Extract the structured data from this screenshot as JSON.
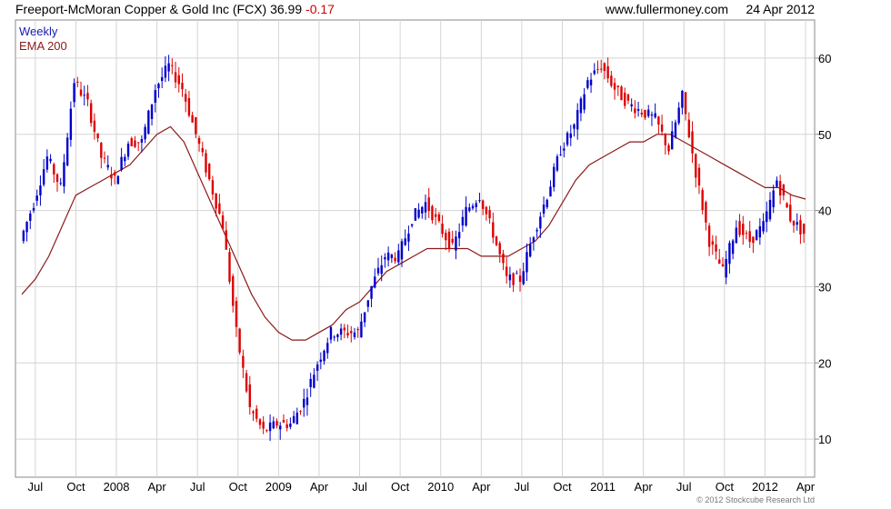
{
  "header": {
    "title": "Freeport-McMoran Copper & Gold Inc (FCX)",
    "price": "36.99",
    "change": "-0.17",
    "site": "www.fullermoney.com",
    "date": "24 Apr 2012"
  },
  "legend": {
    "series1": "Weekly",
    "series2": "EMA 200"
  },
  "copyright": "© 2012 Stockcube Research Ltd",
  "colors": {
    "up": "#0000cc",
    "down": "#dd0000",
    "ema": "#8b1a1a",
    "grid": "#d4d4d4"
  },
  "chart_data": {
    "type": "line",
    "title": "Freeport-McMoran Copper & Gold Inc (FCX)",
    "ylim": [
      5,
      65
    ],
    "y_ticks": [
      10,
      20,
      30,
      40,
      50,
      60
    ],
    "x_ticks": [
      "Jul",
      "Oct",
      "2008",
      "Apr",
      "Jul",
      "Oct",
      "2009",
      "Apr",
      "Jul",
      "Oct",
      "2010",
      "Apr",
      "Jul",
      "Oct",
      "2011",
      "Apr",
      "Jul",
      "Oct",
      "2012",
      "Apr"
    ],
    "grid": true,
    "series": [
      {
        "name": "Weekly",
        "style": "candlestick-approx",
        "x": [
          "2007-06",
          "2007-07",
          "2007-08",
          "2007-09",
          "2007-10",
          "2007-11",
          "2007-12",
          "2008-01",
          "2008-02",
          "2008-03",
          "2008-04",
          "2008-05",
          "2008-06",
          "2008-07",
          "2008-08",
          "2008-09",
          "2008-10",
          "2008-11",
          "2008-12",
          "2009-01",
          "2009-02",
          "2009-03",
          "2009-04",
          "2009-05",
          "2009-06",
          "2009-07",
          "2009-08",
          "2009-09",
          "2009-10",
          "2009-11",
          "2009-12",
          "2010-01",
          "2010-02",
          "2010-03",
          "2010-04",
          "2010-05",
          "2010-06",
          "2010-07",
          "2010-08",
          "2010-09",
          "2010-10",
          "2010-11",
          "2010-12",
          "2011-01",
          "2011-02",
          "2011-03",
          "2011-04",
          "2011-05",
          "2011-06",
          "2011-07",
          "2011-08",
          "2011-09",
          "2011-10",
          "2011-11",
          "2011-12",
          "2012-01",
          "2012-02",
          "2012-03",
          "2012-04"
        ],
        "values": [
          36,
          41,
          47,
          43,
          57,
          54,
          47,
          44,
          49,
          49,
          56,
          59,
          56,
          50,
          44,
          38,
          24,
          14,
          11,
          12,
          12,
          15,
          20,
          24,
          24,
          24,
          30,
          34,
          34,
          39,
          41,
          38,
          35,
          40,
          42,
          37,
          31,
          31,
          37,
          42,
          48,
          51,
          57,
          59,
          56,
          54,
          53,
          52,
          48,
          55,
          45,
          36,
          32,
          38,
          36,
          38,
          44,
          39,
          37
        ]
      },
      {
        "name": "EMA 200",
        "x": [
          "2007-06",
          "2007-07",
          "2007-08",
          "2007-09",
          "2007-10",
          "2007-11",
          "2007-12",
          "2008-01",
          "2008-02",
          "2008-03",
          "2008-04",
          "2008-05",
          "2008-06",
          "2008-07",
          "2008-08",
          "2008-09",
          "2008-10",
          "2008-11",
          "2008-12",
          "2009-01",
          "2009-02",
          "2009-03",
          "2009-04",
          "2009-05",
          "2009-06",
          "2009-07",
          "2009-08",
          "2009-09",
          "2009-10",
          "2009-11",
          "2009-12",
          "2010-01",
          "2010-02",
          "2010-03",
          "2010-04",
          "2010-05",
          "2010-06",
          "2010-07",
          "2010-08",
          "2010-09",
          "2010-10",
          "2010-11",
          "2010-12",
          "2011-01",
          "2011-02",
          "2011-03",
          "2011-04",
          "2011-05",
          "2011-06",
          "2011-07",
          "2011-08",
          "2011-09",
          "2011-10",
          "2011-11",
          "2011-12",
          "2012-01",
          "2012-02",
          "2012-03",
          "2012-04"
        ],
        "values": [
          29,
          31,
          34,
          38,
          42,
          43,
          44,
          45,
          46,
          48,
          50,
          51,
          49,
          45,
          41,
          37,
          33,
          29,
          26,
          24,
          23,
          23,
          24,
          25,
          27,
          28,
          30,
          32,
          33,
          34,
          35,
          35,
          35,
          35,
          34,
          34,
          34,
          35,
          36,
          38,
          41,
          44,
          46,
          47,
          48,
          49,
          49,
          50,
          50,
          49,
          48,
          47,
          46,
          45,
          44,
          43,
          43,
          42,
          41.5
        ]
      }
    ]
  }
}
